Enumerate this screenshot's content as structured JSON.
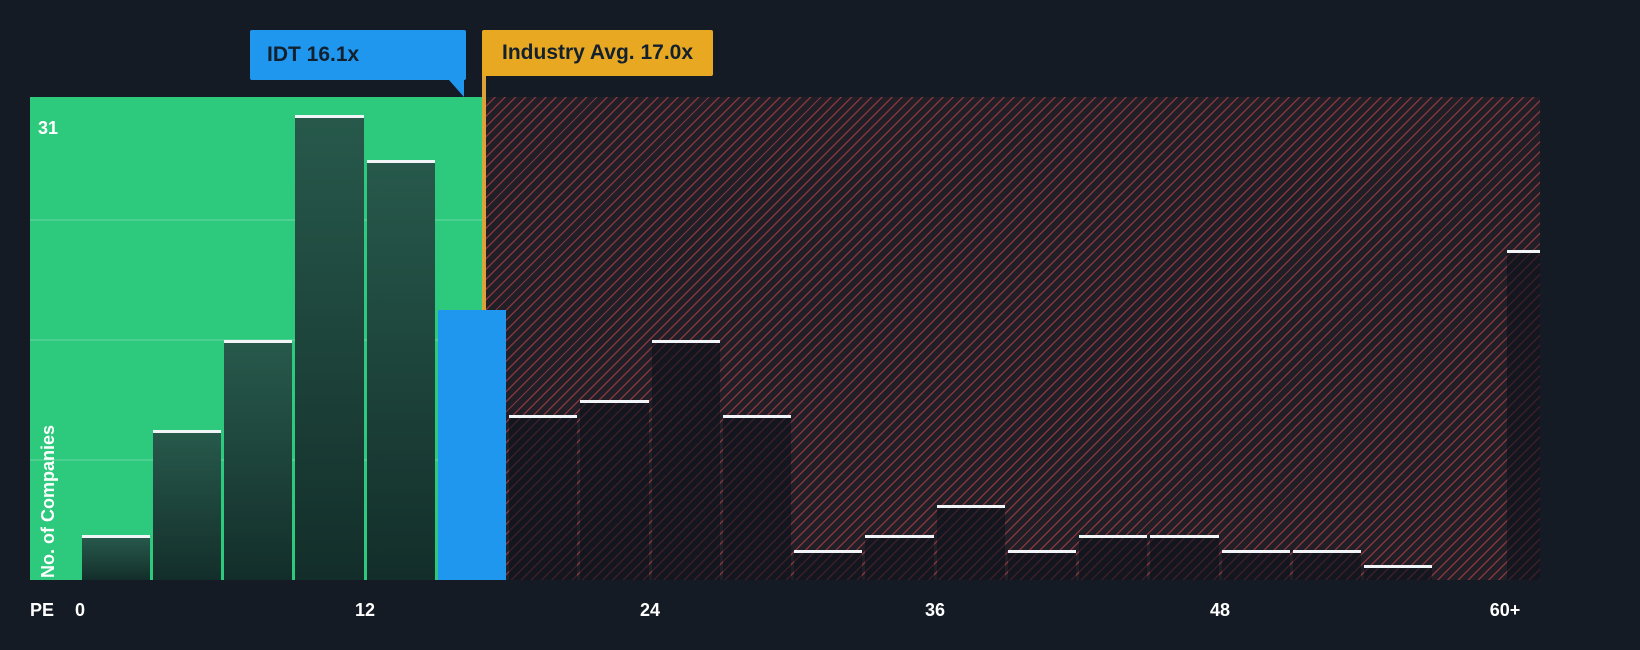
{
  "chart_data": {
    "type": "bar",
    "subtype": "histogram",
    "xlabel": "PE",
    "ylabel": "No. of Companies",
    "y_max_label": "31",
    "ylim": [
      0,
      32
    ],
    "bucket_size": 3,
    "gridline_values": [
      8,
      16,
      24
    ],
    "x_tick_labels": [
      {
        "pe": 0,
        "label": "0"
      },
      {
        "pe": 12,
        "label": "12"
      },
      {
        "pe": 24,
        "label": "24"
      },
      {
        "pe": 36,
        "label": "36"
      },
      {
        "pe": 48,
        "label": "48"
      },
      {
        "pe": 60,
        "label": "60+"
      }
    ],
    "company_marker": {
      "name": "IDT",
      "label": "IDT 16.1x",
      "pe": 16.1
    },
    "industry_marker": {
      "label": "Industry Avg. 17.0x",
      "pe": 17.0
    },
    "bars": [
      {
        "start": 0,
        "value": 3,
        "segment": "below_avg"
      },
      {
        "start": 3,
        "value": 10,
        "segment": "below_avg"
      },
      {
        "start": 6,
        "value": 16,
        "segment": "below_avg"
      },
      {
        "start": 9,
        "value": 31,
        "segment": "below_avg"
      },
      {
        "start": 12,
        "value": 28,
        "segment": "below_avg"
      },
      {
        "start": 15,
        "value": 18,
        "segment": "company"
      },
      {
        "start": 18,
        "value": 11,
        "segment": "above_avg"
      },
      {
        "start": 21,
        "value": 12,
        "segment": "above_avg"
      },
      {
        "start": 24,
        "value": 16,
        "segment": "above_avg"
      },
      {
        "start": 27,
        "value": 11,
        "segment": "above_avg"
      },
      {
        "start": 30,
        "value": 2,
        "segment": "above_avg"
      },
      {
        "start": 33,
        "value": 3,
        "segment": "above_avg"
      },
      {
        "start": 36,
        "value": 5,
        "segment": "above_avg"
      },
      {
        "start": 39,
        "value": 2,
        "segment": "above_avg"
      },
      {
        "start": 42,
        "value": 3,
        "segment": "above_avg"
      },
      {
        "start": 45,
        "value": 3,
        "segment": "above_avg"
      },
      {
        "start": 48,
        "value": 2,
        "segment": "above_avg"
      },
      {
        "start": 51,
        "value": 2,
        "segment": "above_avg"
      },
      {
        "start": 54,
        "value": 1,
        "segment": "above_avg"
      },
      {
        "start": 57,
        "value": 0,
        "segment": "above_avg"
      },
      {
        "start": 60,
        "value": 22,
        "segment": "above_avg"
      }
    ],
    "colors": {
      "green_zone": "#2dc97d",
      "company_bar": "#1f97ef",
      "industry_line": "#dda13a",
      "industry_badge": "#e9a821",
      "hatch_red": "#e54d50"
    }
  }
}
